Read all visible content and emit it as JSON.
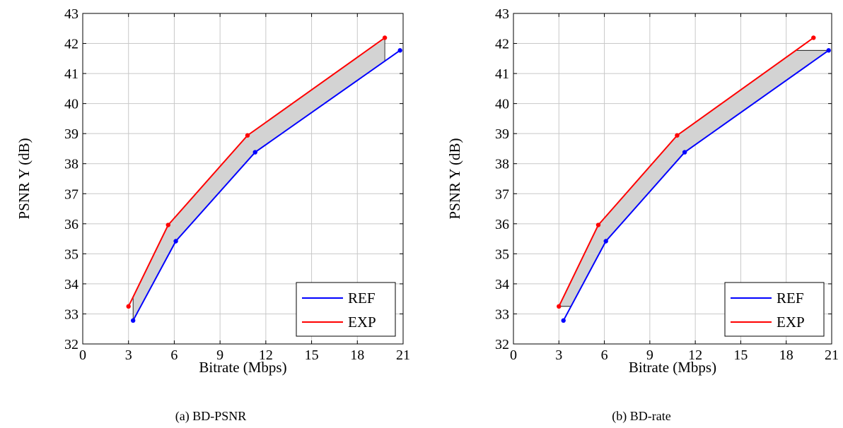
{
  "chart_data": [
    {
      "type": "line",
      "caption": "(a) BD-PSNR",
      "fill_mode": "psnr",
      "xlabel": "Bitrate (Mbps)",
      "ylabel": "PSNR Y (dB)",
      "xlim": [
        0,
        21
      ],
      "ylim": [
        32,
        43
      ],
      "xticks": [
        "0",
        "3",
        "6",
        "9",
        "12",
        "15",
        "18",
        "21"
      ],
      "yticks": [
        "32",
        "33",
        "34",
        "35",
        "36",
        "37",
        "38",
        "39",
        "40",
        "41",
        "42",
        "43"
      ],
      "grid": true,
      "legend_position": "bottom-right",
      "shaded_color": "#d3d3d3",
      "series": [
        {
          "name": "REF",
          "color": "#0000ff",
          "x": [
            3.3,
            6.1,
            11.3,
            20.8
          ],
          "y": [
            32.78,
            35.42,
            38.38,
            41.77
          ]
        },
        {
          "name": "EXP",
          "color": "#ff0000",
          "x": [
            3.0,
            5.6,
            10.8,
            19.8
          ],
          "y": [
            33.25,
            35.96,
            38.94,
            42.19
          ]
        }
      ]
    },
    {
      "type": "line",
      "caption": "(b) BD-rate",
      "fill_mode": "rate",
      "xlabel": "Bitrate (Mbps)",
      "ylabel": "PSNR Y (dB)",
      "xlim": [
        0,
        21
      ],
      "ylim": [
        32,
        43
      ],
      "xticks": [
        "0",
        "3",
        "6",
        "9",
        "12",
        "15",
        "18",
        "21"
      ],
      "yticks": [
        "32",
        "33",
        "34",
        "35",
        "36",
        "37",
        "38",
        "39",
        "40",
        "41",
        "42",
        "43"
      ],
      "grid": true,
      "legend_position": "bottom-right",
      "shaded_color": "#d3d3d3",
      "series": [
        {
          "name": "REF",
          "color": "#0000ff",
          "x": [
            3.3,
            6.1,
            11.3,
            20.8
          ],
          "y": [
            32.78,
            35.42,
            38.38,
            41.77
          ]
        },
        {
          "name": "EXP",
          "color": "#ff0000",
          "x": [
            3.0,
            5.6,
            10.8,
            19.8
          ],
          "y": [
            33.25,
            35.96,
            38.94,
            42.19
          ]
        }
      ]
    }
  ]
}
